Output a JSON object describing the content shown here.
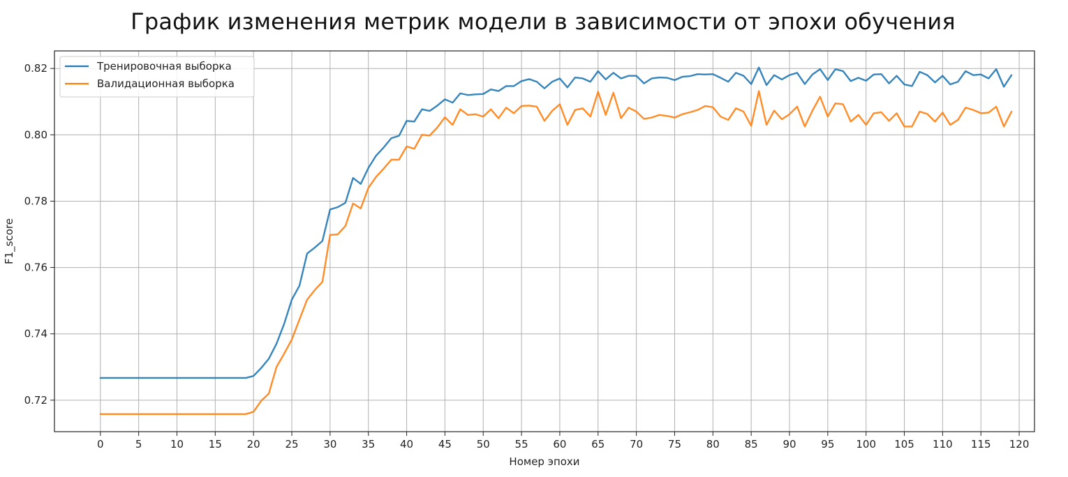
{
  "chart_data": {
    "type": "line",
    "title": "График изменения метрик модели в зависимости от эпохи обучения",
    "xlabel": "Номер эпохи",
    "ylabel": "F1_score",
    "xlim": [
      -6,
      122
    ],
    "ylim": [
      0.7105,
      0.8253
    ],
    "x_ticks": [
      0,
      5,
      10,
      15,
      20,
      25,
      30,
      35,
      40,
      45,
      50,
      55,
      60,
      65,
      70,
      75,
      80,
      85,
      90,
      95,
      100,
      105,
      110,
      115,
      120
    ],
    "y_ticks": [
      0.72,
      0.74,
      0.76,
      0.78,
      0.8,
      0.82
    ],
    "y_tick_labels": [
      "0.72",
      "0.74",
      "0.76",
      "0.78",
      "0.80",
      "0.82"
    ],
    "grid": true,
    "legend_position": "top-left",
    "x": [
      0,
      1,
      2,
      3,
      4,
      5,
      6,
      7,
      8,
      9,
      10,
      11,
      12,
      13,
      14,
      15,
      16,
      17,
      18,
      19,
      20,
      21,
      22,
      23,
      24,
      25,
      26,
      27,
      28,
      29,
      30,
      31,
      32,
      33,
      34,
      35,
      36,
      37,
      38,
      39,
      40,
      41,
      42,
      43,
      44,
      45,
      46,
      47,
      48,
      49,
      50,
      51,
      52,
      53,
      54,
      55,
      56,
      57,
      58,
      59,
      60,
      61,
      62,
      63,
      64,
      65,
      66,
      67,
      68,
      69,
      70,
      71,
      72,
      73,
      74,
      75,
      76,
      77,
      78,
      79,
      80,
      81,
      82,
      83,
      84,
      85,
      86,
      87,
      88,
      89,
      90,
      91,
      92,
      93,
      94,
      95,
      96,
      97,
      98,
      99,
      100,
      101,
      102,
      103,
      104,
      105,
      106,
      107,
      108,
      109,
      110,
      111,
      112,
      113,
      114,
      115,
      116,
      117,
      118,
      119
    ],
    "series": [
      {
        "name": "Тренировочная выборка",
        "color": "#1f77b4",
        "values": [
          0.7267,
          0.7267,
          0.7267,
          0.7267,
          0.7267,
          0.7267,
          0.7267,
          0.7267,
          0.7267,
          0.7267,
          0.7267,
          0.7267,
          0.7267,
          0.7267,
          0.7267,
          0.7267,
          0.7267,
          0.7267,
          0.7267,
          0.7267,
          0.7273,
          0.7297,
          0.7325,
          0.737,
          0.743,
          0.7503,
          0.7545,
          0.7642,
          0.766,
          0.768,
          0.7775,
          0.7782,
          0.7795,
          0.787,
          0.7852,
          0.79,
          0.7937,
          0.7962,
          0.799,
          0.7997,
          0.8042,
          0.804,
          0.8077,
          0.8072,
          0.8088,
          0.8107,
          0.8097,
          0.8125,
          0.812,
          0.8122,
          0.8123,
          0.8137,
          0.8132,
          0.8147,
          0.8147,
          0.8162,
          0.8168,
          0.816,
          0.814,
          0.816,
          0.817,
          0.8143,
          0.8173,
          0.817,
          0.816,
          0.8192,
          0.8167,
          0.8187,
          0.817,
          0.8178,
          0.8178,
          0.8155,
          0.817,
          0.8173,
          0.8172,
          0.8165,
          0.8175,
          0.8177,
          0.8183,
          0.8182,
          0.8183,
          0.8172,
          0.816,
          0.8187,
          0.8178,
          0.8153,
          0.8203,
          0.815,
          0.818,
          0.8167,
          0.818,
          0.8187,
          0.8153,
          0.8182,
          0.8198,
          0.8165,
          0.8198,
          0.8192,
          0.8162,
          0.8172,
          0.8163,
          0.8182,
          0.8183,
          0.8155,
          0.8178,
          0.8152,
          0.8147,
          0.819,
          0.818,
          0.8158,
          0.8178,
          0.8152,
          0.816,
          0.8192,
          0.818,
          0.8182,
          0.817,
          0.8198,
          0.8145,
          0.818
        ]
      },
      {
        "name": "Валидационная выборка",
        "color": "#ff7f0e",
        "values": [
          0.7158,
          0.7158,
          0.7158,
          0.7158,
          0.7158,
          0.7158,
          0.7158,
          0.7158,
          0.7158,
          0.7158,
          0.7158,
          0.7158,
          0.7158,
          0.7158,
          0.7158,
          0.7158,
          0.7158,
          0.7158,
          0.7158,
          0.7158,
          0.7165,
          0.7198,
          0.722,
          0.73,
          0.734,
          0.7383,
          0.7443,
          0.7503,
          0.7532,
          0.7557,
          0.7698,
          0.77,
          0.7725,
          0.7793,
          0.7778,
          0.784,
          0.7873,
          0.7898,
          0.7925,
          0.7925,
          0.7965,
          0.7958,
          0.8,
          0.7998,
          0.8022,
          0.8053,
          0.803,
          0.8077,
          0.806,
          0.8062,
          0.8055,
          0.8077,
          0.805,
          0.8082,
          0.8065,
          0.8087,
          0.8088,
          0.8085,
          0.8042,
          0.8072,
          0.8092,
          0.803,
          0.8075,
          0.808,
          0.8055,
          0.813,
          0.806,
          0.8127,
          0.805,
          0.8082,
          0.807,
          0.8048,
          0.8052,
          0.806,
          0.8057,
          0.8052,
          0.8062,
          0.8068,
          0.8075,
          0.8087,
          0.8083,
          0.8055,
          0.8045,
          0.808,
          0.807,
          0.8027,
          0.8132,
          0.803,
          0.8073,
          0.8047,
          0.8062,
          0.8085,
          0.8025,
          0.8073,
          0.8115,
          0.8055,
          0.8095,
          0.8092,
          0.804,
          0.806,
          0.803,
          0.8065,
          0.8068,
          0.8042,
          0.8065,
          0.8025,
          0.8025,
          0.807,
          0.8063,
          0.804,
          0.8067,
          0.803,
          0.8045,
          0.8082,
          0.8075,
          0.8065,
          0.8067,
          0.8085,
          0.8025,
          0.807
        ]
      }
    ]
  }
}
